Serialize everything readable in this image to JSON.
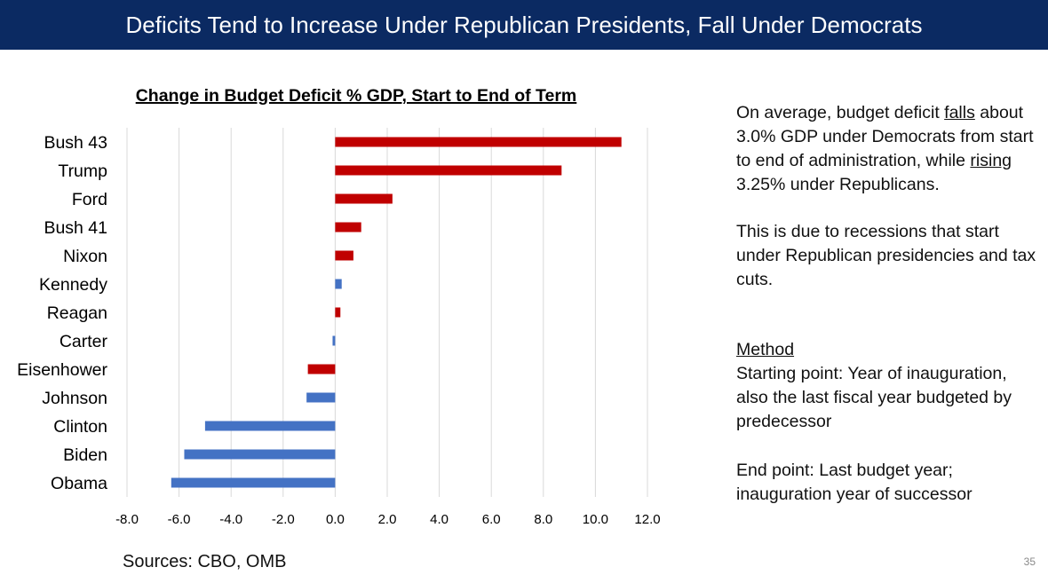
{
  "header": {
    "title": "Deficits Tend to Increase Under Republican Presidents, Fall Under Democrats"
  },
  "chart_data": {
    "type": "bar",
    "orientation": "horizontal",
    "title": "Change in Budget Deficit % GDP,  Start to End of Term",
    "categories": [
      "Bush 43",
      "Trump",
      "Ford",
      "Bush 41",
      "Nixon",
      "Kennedy",
      "Reagan",
      "Carter",
      "Eisenhower",
      "Johnson",
      "Clinton",
      "Biden",
      "Obama"
    ],
    "values": [
      11.0,
      8.7,
      2.2,
      1.0,
      0.7,
      0.25,
      0.2,
      -0.1,
      -1.05,
      -1.1,
      -5.0,
      -5.8,
      -6.3
    ],
    "party": [
      "R",
      "R",
      "R",
      "R",
      "R",
      "D",
      "R",
      "D",
      "R",
      "D",
      "D",
      "D",
      "D"
    ],
    "colors": {
      "R": "#c00000",
      "D": "#4472c4"
    },
    "xlim": [
      -8,
      12
    ],
    "xticks": [
      "-8.0",
      "-6.0",
      "-4.0",
      "-2.0",
      "0.0",
      "2.0",
      "4.0",
      "6.0",
      "8.0",
      "10.0",
      "12.0"
    ],
    "grid": true
  },
  "text": {
    "p1_a": "On average, budget deficit ",
    "p1_falls": "falls",
    "p1_b": " about 3.0% GDP under Democrats from start to end of administration, while ",
    "p1_rising": "rising",
    "p1_c": " 3.25% under Republicans.",
    "p2": "This is due to recessions that start under Republican presidencies and tax cuts.",
    "method_heading": "Method",
    "method_start": "Starting point: Year of inauguration, also the last fiscal year budgeted by predecessor",
    "method_end": "End point:  Last budget year; inauguration year of successor"
  },
  "footer": {
    "sources": "Sources:  CBO, OMB",
    "slide_number": "35"
  }
}
